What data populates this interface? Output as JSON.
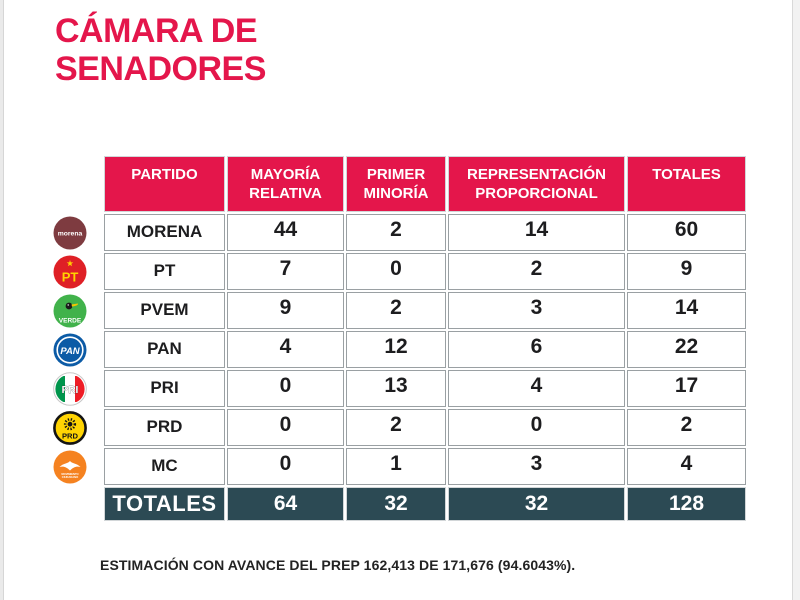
{
  "title": {
    "line1": "CÁMARA DE",
    "line2": "SENADORES"
  },
  "colors": {
    "accent": "#E4164B",
    "totals_bg": "#2C4A54",
    "grid": "#9AA0A3"
  },
  "chart_data": {
    "type": "table",
    "title": "CÁMARA DE SENADORES",
    "columns": [
      "PARTIDO",
      "MAYORÍA RELATIVA",
      "PRIMER MINORÍA",
      "REPRESENTACIÓN PROPORCIONAL",
      "TOTALES"
    ],
    "rows": [
      {
        "party": "MORENA",
        "logo": "morena-logo",
        "logo_color": "#7E3B40",
        "values": [
          44,
          2,
          14,
          60
        ]
      },
      {
        "party": "PT",
        "logo": "pt-logo",
        "logo_color": "#DF2026",
        "values": [
          7,
          0,
          2,
          9
        ]
      },
      {
        "party": "PVEM",
        "logo": "pvem-logo",
        "logo_color": "#41B24B",
        "values": [
          9,
          2,
          3,
          14
        ]
      },
      {
        "party": "PAN",
        "logo": "pan-logo",
        "logo_color": "#0C5BA6",
        "values": [
          4,
          12,
          6,
          22
        ]
      },
      {
        "party": "PRI",
        "logo": "pri-logo",
        "logo_color": "#FFFFFF",
        "values": [
          0,
          13,
          4,
          17
        ]
      },
      {
        "party": "PRD",
        "logo": "prd-logo",
        "logo_color": "#FFD403",
        "values": [
          0,
          2,
          0,
          2
        ]
      },
      {
        "party": "MC",
        "logo": "mc-logo",
        "logo_color": "#F58220",
        "values": [
          0,
          1,
          3,
          4
        ]
      }
    ],
    "totals_row": {
      "label": "TOTALES",
      "values": [
        64,
        32,
        32,
        128
      ]
    },
    "note": "ESTIMACIÓN CON AVANCE DEL PREP 162,413 DE 171,676 (94.6043%)."
  }
}
